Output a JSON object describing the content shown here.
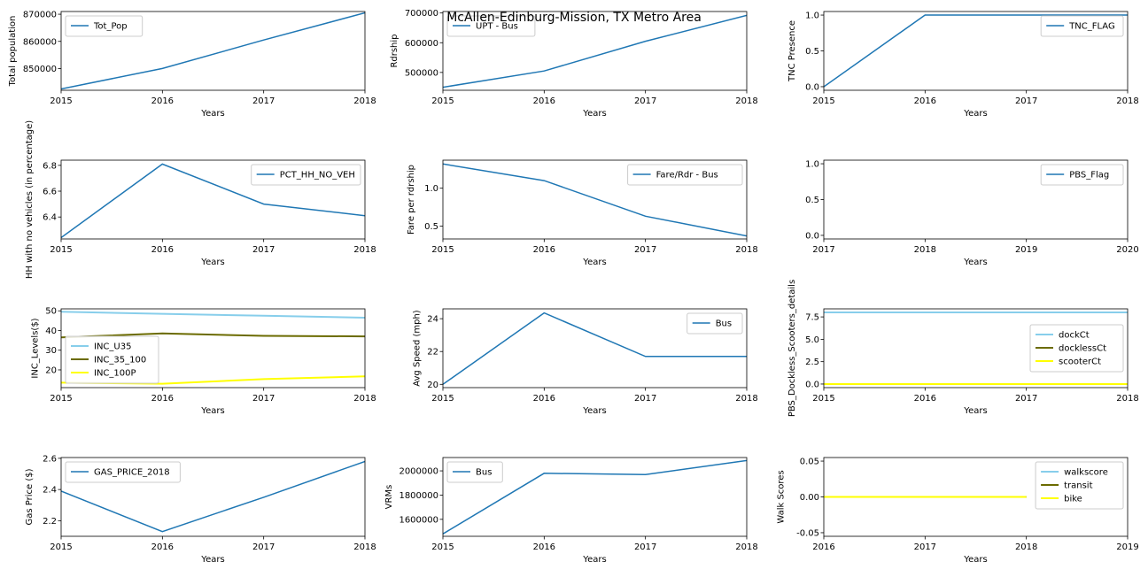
{
  "figure_title": "McAllen-Edinburg-Mission, TX Metro Area",
  "colors": {
    "default": "#1f77b4",
    "skyblue": "#87ceeb",
    "olive": "#6b6b00",
    "yellow": "#ffff00"
  },
  "chart_data": [
    {
      "type": "line",
      "xlabel": "Years",
      "ylabel": "Total population",
      "xlim": [
        2015,
        2018
      ],
      "ylim": [
        842000,
        871000
      ],
      "xticks": [
        2015,
        2016,
        2017,
        2018
      ],
      "yticks": [
        850000,
        860000,
        870000
      ],
      "ytick_labels": [
        "850000",
        "860000",
        "870000"
      ],
      "legend_loc": "upper-left",
      "series": [
        {
          "name": "Tot_Pop",
          "color": "default",
          "x": [
            2015,
            2016,
            2017,
            2018
          ],
          "values": [
            842500,
            850000,
            860500,
            870500
          ]
        }
      ]
    },
    {
      "type": "line",
      "xlabel": "Years",
      "ylabel": "Rdrship",
      "xlim": [
        2015,
        2018
      ],
      "ylim": [
        440000,
        705000
      ],
      "xticks": [
        2015,
        2016,
        2017,
        2018
      ],
      "yticks": [
        500000,
        600000,
        700000
      ],
      "ytick_labels": [
        "500000",
        "600000",
        "700000"
      ],
      "legend_loc": "upper-left",
      "series": [
        {
          "name": "UPT - Bus",
          "color": "default",
          "x": [
            2015,
            2016,
            2017,
            2018
          ],
          "values": [
            450000,
            505000,
            605000,
            692000
          ]
        }
      ]
    },
    {
      "type": "line",
      "xlabel": "Years",
      "ylabel": "TNC Presence",
      "xlim": [
        2015,
        2018
      ],
      "ylim": [
        -0.05,
        1.05
      ],
      "xticks": [
        2015,
        2016,
        2017,
        2018
      ],
      "yticks": [
        0.0,
        0.5,
        1.0
      ],
      "ytick_labels": [
        "0.0",
        "0.5",
        "1.0"
      ],
      "legend_loc": "upper-right",
      "series": [
        {
          "name": "TNC_FLAG",
          "color": "default",
          "x": [
            2015,
            2016,
            2017,
            2018
          ],
          "values": [
            0,
            1,
            1,
            1
          ]
        }
      ]
    },
    {
      "type": "line",
      "xlabel": "Years",
      "ylabel": "HH with no vehicles (in percentage)",
      "xlim": [
        2015,
        2018
      ],
      "ylim": [
        6.23,
        6.84
      ],
      "xticks": [
        2015,
        2016,
        2017,
        2018
      ],
      "yticks": [
        6.4,
        6.6,
        6.8
      ],
      "ytick_labels": [
        "6.4",
        "6.6",
        "6.8"
      ],
      "legend_loc": "upper-right",
      "series": [
        {
          "name": "PCT_HH_NO_VEH",
          "color": "default",
          "x": [
            2015,
            2016,
            2017,
            2018
          ],
          "values": [
            6.24,
            6.81,
            6.5,
            6.41
          ]
        }
      ]
    },
    {
      "type": "line",
      "xlabel": "Years",
      "ylabel": "Fare per rdrship",
      "xlim": [
        2015,
        2018
      ],
      "ylim": [
        0.33,
        1.37
      ],
      "xticks": [
        2015,
        2016,
        2017,
        2018
      ],
      "yticks": [
        0.5,
        1.0
      ],
      "ytick_labels": [
        "0.5",
        "1.0"
      ],
      "legend_loc": "upper-right",
      "series": [
        {
          "name": "Fare/Rdr - Bus",
          "color": "default",
          "x": [
            2015,
            2016,
            2017,
            2018
          ],
          "values": [
            1.32,
            1.1,
            0.63,
            0.37
          ]
        }
      ]
    },
    {
      "type": "line",
      "xlabel": "Years",
      "ylabel": "",
      "xlim": [
        2017,
        2020
      ],
      "ylim": [
        -0.05,
        1.05
      ],
      "xticks": [
        2017,
        2018,
        2019,
        2020
      ],
      "yticks": [
        0.0,
        0.5,
        1.0
      ],
      "ytick_labels": [
        "0.0",
        "0.5",
        "1.0"
      ],
      "legend_loc": "upper-right",
      "series": [
        {
          "name": "PBS_Flag",
          "color": "default",
          "x": [],
          "values": []
        }
      ]
    },
    {
      "type": "line",
      "xlabel": "Years",
      "ylabel": "INC_Levels($)",
      "xlim": [
        2015,
        2018
      ],
      "ylim": [
        11,
        51
      ],
      "xticks": [
        2015,
        2016,
        2017,
        2018
      ],
      "yticks": [
        20,
        30,
        40,
        50
      ],
      "ytick_labels": [
        "20",
        "30",
        "40",
        "50"
      ],
      "legend_loc": "lower-left",
      "series": [
        {
          "name": "INC_U35",
          "color": "skyblue",
          "x": [
            2015,
            2016,
            2017,
            2018
          ],
          "values": [
            49.5,
            48.5,
            47.5,
            46.5
          ]
        },
        {
          "name": "INC_35_100",
          "color": "olive",
          "x": [
            2015,
            2016,
            2017,
            2018
          ],
          "values": [
            36.5,
            38.5,
            37.3,
            37.0
          ]
        },
        {
          "name": "INC_100P",
          "color": "yellow",
          "x": [
            2015,
            2016,
            2017,
            2018
          ],
          "values": [
            13.5,
            13.0,
            15.3,
            16.7
          ]
        }
      ]
    },
    {
      "type": "line",
      "xlabel": "Years",
      "ylabel": "Avg Speed (mph)",
      "xlim": [
        2015,
        2018
      ],
      "ylim": [
        19.8,
        24.6
      ],
      "xticks": [
        2015,
        2016,
        2017,
        2018
      ],
      "yticks": [
        20,
        22,
        24
      ],
      "ytick_labels": [
        "20",
        "22",
        "24"
      ],
      "legend_loc": "upper-right",
      "series": [
        {
          "name": "Bus",
          "color": "default",
          "x": [
            2015,
            2016,
            2017,
            2018
          ],
          "values": [
            20.0,
            24.35,
            21.7,
            21.7
          ]
        }
      ]
    },
    {
      "type": "line",
      "xlabel": "Years",
      "ylabel": "PBS_Dockless_Scooters_details",
      "xlim": [
        2015,
        2018
      ],
      "ylim": [
        -0.4,
        8.4
      ],
      "xticks": [
        2015,
        2016,
        2017,
        2018
      ],
      "yticks": [
        0.0,
        2.5,
        5.0,
        7.5
      ],
      "ytick_labels": [
        "0.0",
        "2.5",
        "5.0",
        "7.5"
      ],
      "legend_loc": "center-right",
      "series": [
        {
          "name": "dockCt",
          "color": "skyblue",
          "x": [
            2015,
            2016,
            2017,
            2018
          ],
          "values": [
            8,
            8,
            8,
            8
          ]
        },
        {
          "name": "docklessCt",
          "color": "olive",
          "x": [
            2015,
            2016,
            2017,
            2018
          ],
          "values": [
            0,
            0,
            0,
            0
          ]
        },
        {
          "name": "scooterCt",
          "color": "yellow",
          "x": [
            2015,
            2016,
            2017,
            2018
          ],
          "values": [
            0,
            0,
            0,
            0
          ]
        }
      ]
    },
    {
      "type": "line",
      "xlabel": "Years",
      "ylabel": "Gas Price ($)",
      "xlim": [
        2015,
        2018
      ],
      "ylim": [
        2.1,
        2.605
      ],
      "xticks": [
        2015,
        2016,
        2017,
        2018
      ],
      "yticks": [
        2.2,
        2.4,
        2.6
      ],
      "ytick_labels": [
        "2.2",
        "2.4",
        "2.6"
      ],
      "legend_loc": "upper-left",
      "series": [
        {
          "name": "GAS_PRICE_2018",
          "color": "default",
          "x": [
            2015,
            2016,
            2017,
            2018
          ],
          "values": [
            2.39,
            2.13,
            2.35,
            2.58
          ]
        }
      ]
    },
    {
      "type": "line",
      "xlabel": "Years",
      "ylabel": "VRMs",
      "xlim": [
        2015,
        2018
      ],
      "ylim": [
        1460000,
        2110000
      ],
      "xticks": [
        2015,
        2016,
        2017,
        2018
      ],
      "yticks": [
        1600000,
        1800000,
        2000000
      ],
      "ytick_labels": [
        "1600000",
        "1800000",
        "2000000"
      ],
      "legend_loc": "upper-left",
      "series": [
        {
          "name": "Bus",
          "color": "default",
          "x": [
            2015,
            2016,
            2017,
            2018
          ],
          "values": [
            1480000,
            1980000,
            1970000,
            2085000
          ]
        }
      ]
    },
    {
      "type": "line",
      "xlabel": "Years",
      "ylabel": "Walk Scores",
      "xlim": [
        2016,
        2019
      ],
      "ylim": [
        -0.055,
        0.055
      ],
      "xticks": [
        2016,
        2017,
        2018,
        2019
      ],
      "yticks": [
        -0.05,
        0.0,
        0.05
      ],
      "ytick_labels": [
        "-0.05",
        "0.00",
        "0.05"
      ],
      "legend_loc": "upper-right",
      "series": [
        {
          "name": "walkscore",
          "color": "skyblue",
          "x": [
            2016,
            2017,
            2018
          ],
          "values": [
            0,
            0,
            0
          ]
        },
        {
          "name": "transit",
          "color": "olive",
          "x": [
            2016,
            2017,
            2018
          ],
          "values": [
            0,
            0,
            0
          ]
        },
        {
          "name": "bike",
          "color": "yellow",
          "x": [
            2016,
            2017,
            2018
          ],
          "values": [
            0,
            0,
            0
          ]
        }
      ]
    }
  ]
}
